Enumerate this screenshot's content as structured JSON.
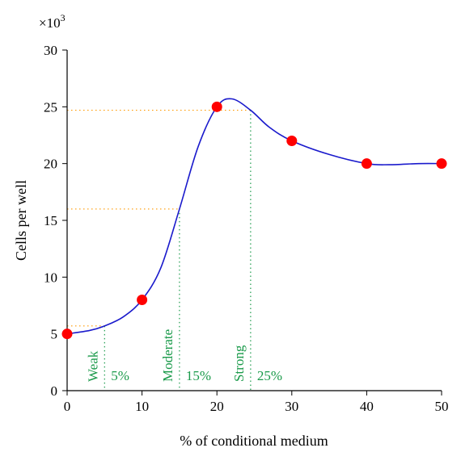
{
  "chart_data": {
    "type": "line",
    "xlabel": "% of conditional medium",
    "ylabel": "Cells per well",
    "y_multiplier": "×10",
    "y_multiplier_exp": "3",
    "xlim": [
      0,
      50
    ],
    "ylim": [
      0,
      30
    ],
    "x_ticks": [
      0,
      10,
      20,
      30,
      40,
      50
    ],
    "y_ticks": [
      0,
      5,
      10,
      15,
      20,
      25,
      30
    ],
    "series": [
      {
        "points": [
          [
            0,
            5
          ],
          [
            10,
            8
          ],
          [
            20,
            25
          ],
          [
            30,
            22
          ],
          [
            40,
            20
          ],
          [
            50,
            20
          ]
        ],
        "curve": [
          [
            0,
            5
          ],
          [
            3,
            5.3
          ],
          [
            5,
            5.7
          ],
          [
            7.5,
            6.5
          ],
          [
            10,
            8
          ],
          [
            12.5,
            10.8
          ],
          [
            15,
            16
          ],
          [
            17.5,
            21.5
          ],
          [
            20,
            25
          ],
          [
            22,
            25.7
          ],
          [
            24.5,
            24.7
          ],
          [
            27,
            23.2
          ],
          [
            30,
            22
          ],
          [
            35,
            20.8
          ],
          [
            40,
            20
          ],
          [
            43,
            19.9
          ],
          [
            47,
            20
          ],
          [
            50,
            20
          ]
        ],
        "marker_color": "#ff0000",
        "line_color": "#1a1acc"
      }
    ],
    "annotations": [
      {
        "label": "Weak",
        "x": 5,
        "y": 5.7,
        "percent": "5%"
      },
      {
        "label": "Moderate",
        "x": 15,
        "y": 16,
        "percent": "15%"
      },
      {
        "label": "Strong",
        "x": 24.5,
        "y": 24.7,
        "percent": "25%"
      }
    ],
    "colors": {
      "horizontal_guides": "#ff9900",
      "vertical_guides": "#1a9a4a",
      "annotation_text": "#1a9a4a"
    }
  }
}
